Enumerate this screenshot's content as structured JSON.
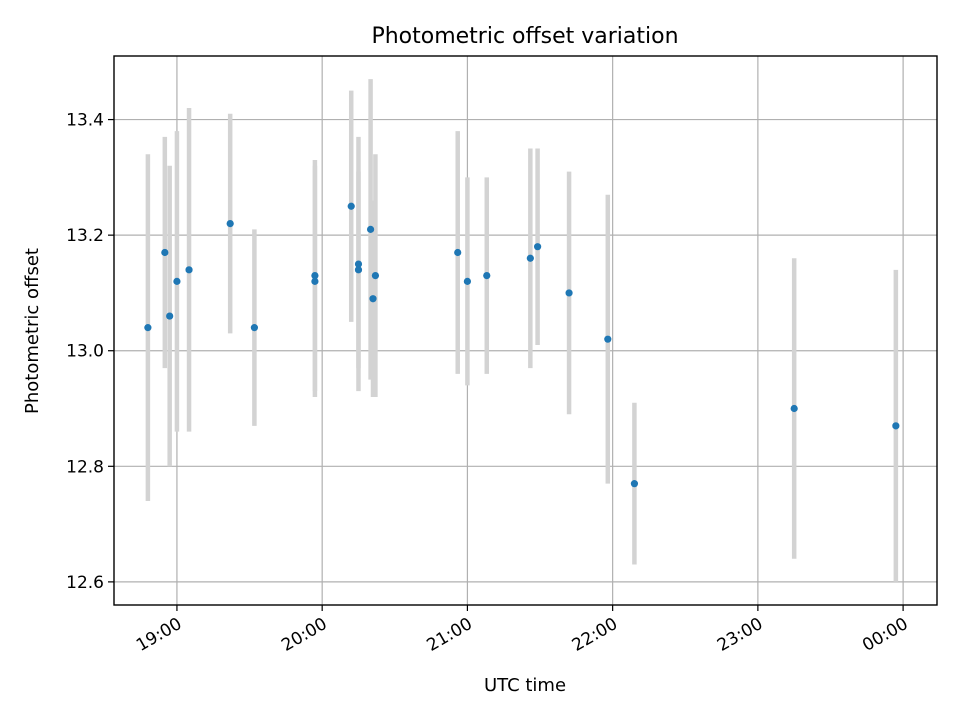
{
  "chart_data": {
    "type": "scatter",
    "title": "Photometric offset variation",
    "xlabel": "UTC time",
    "ylabel": "Photometric offset",
    "x_type": "time",
    "xlim": [
      "18:34",
      "00:14"
    ],
    "ylim": [
      12.56,
      13.51
    ],
    "xticks": [
      "19:00",
      "20:00",
      "21:00",
      "22:00",
      "23:00",
      "00:00"
    ],
    "yticks": [
      12.6,
      12.8,
      13.0,
      13.2,
      13.4
    ],
    "grid": true,
    "colors": {
      "marker": "#1f77b4",
      "errorbar": "#d3d3d3"
    },
    "points": [
      {
        "t": "18:48",
        "y": 13.04,
        "err": 0.3
      },
      {
        "t": "18:55",
        "y": 13.17,
        "err": 0.2
      },
      {
        "t": "18:57",
        "y": 13.06,
        "err": 0.26
      },
      {
        "t": "19:00",
        "y": 13.12,
        "err": 0.26
      },
      {
        "t": "19:05",
        "y": 13.14,
        "err": 0.28
      },
      {
        "t": "19:22",
        "y": 13.22,
        "err": 0.19
      },
      {
        "t": "19:32",
        "y": 13.04,
        "err": 0.17
      },
      {
        "t": "19:57",
        "y": 13.12,
        "err": 0.2
      },
      {
        "t": "19:57",
        "y": 13.13,
        "err": 0.2
      },
      {
        "t": "20:12",
        "y": 13.25,
        "err": 0.2
      },
      {
        "t": "20:15",
        "y": 13.14,
        "err": 0.17
      },
      {
        "t": "20:15",
        "y": 13.15,
        "err": 0.22
      },
      {
        "t": "20:20",
        "y": 13.21,
        "err": 0.26
      },
      {
        "t": "20:21",
        "y": 13.09,
        "err": 0.17
      },
      {
        "t": "20:22",
        "y": 13.13,
        "err": 0.21
      },
      {
        "t": "20:56",
        "y": 13.17,
        "err": 0.21
      },
      {
        "t": "21:00",
        "y": 13.12,
        "err": 0.18
      },
      {
        "t": "21:08",
        "y": 13.13,
        "err": 0.17
      },
      {
        "t": "21:26",
        "y": 13.16,
        "err": 0.19
      },
      {
        "t": "21:29",
        "y": 13.18,
        "err": 0.17
      },
      {
        "t": "21:42",
        "y": 13.1,
        "err": 0.21
      },
      {
        "t": "21:58",
        "y": 13.02,
        "err": 0.25
      },
      {
        "t": "22:09",
        "y": 12.77,
        "err": 0.14
      },
      {
        "t": "23:15",
        "y": 12.9,
        "err": 0.26
      },
      {
        "t": "23:57",
        "y": 12.87,
        "err": 0.27
      }
    ]
  }
}
